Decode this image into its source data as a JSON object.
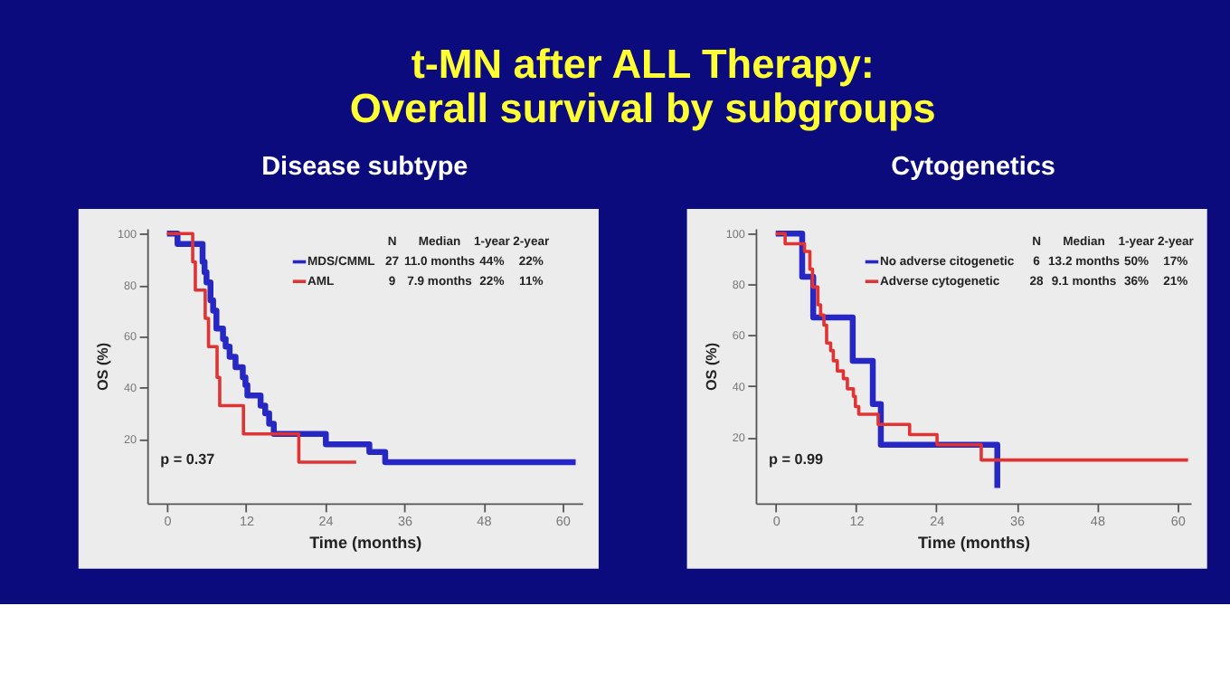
{
  "chart_data": [
    {
      "type": "other",
      "title": "t-MN after ALL Therapy:\nOverall survival by subgroups"
    },
    {
      "type": "step",
      "title": "Disease subtype",
      "xlabel": "Time (months)",
      "ylabel": "OS (%)",
      "xlim": [
        -3,
        63
      ],
      "ylim": [
        -5,
        102
      ],
      "xticks": [
        0,
        12,
        24,
        36,
        48,
        60
      ],
      "yticks": [
        20,
        40,
        60,
        80,
        100
      ],
      "grid": false,
      "legend": "top",
      "series": [
        {
          "name": "MDS/CMML",
          "color": "#2727c4",
          "x": [
            0,
            1.6,
            5.4,
            5.7,
            6.0,
            6.6,
            7.0,
            7.5,
            8.5,
            8.9,
            9.5,
            10.4,
            11.5,
            11.9,
            12.2,
            14.2,
            14.9,
            15.5,
            16.2,
            24.1,
            30.7,
            33.1,
            62
          ],
          "values": [
            100,
            96,
            89,
            85,
            81,
            74,
            70,
            63,
            59,
            56,
            52,
            48,
            44,
            41,
            37,
            33,
            30,
            26,
            22,
            18,
            15,
            11,
            11
          ]
        },
        {
          "name": "AML",
          "color": "#e03434",
          "x": [
            0,
            3.9,
            4.3,
            5.8,
            6.3,
            7.6,
            8.0,
            11.6,
            20.0,
            28.7
          ],
          "values": [
            100,
            89,
            78,
            67,
            56,
            44,
            33,
            22,
            11,
            11
          ]
        }
      ],
      "annotations": [
        "N",
        "Median",
        "1-year",
        "2-year",
        "27",
        "11.0 months",
        "44%",
        "22%",
        "9",
        "7.9 months",
        "22%",
        "11%",
        "p = 0.37"
      ]
    },
    {
      "type": "step",
      "title": "Cytogenetics",
      "xlabel": "Time (months)",
      "ylabel": "OS (%)",
      "xlim": [
        -3,
        62
      ],
      "ylim": [
        -6,
        102
      ],
      "xticks": [
        0,
        12,
        24,
        36,
        48,
        60
      ],
      "yticks": [
        20,
        40,
        60,
        80,
        100
      ],
      "grid": false,
      "legend": "top",
      "series": [
        {
          "name": "No adverse citogenetic",
          "color": "#2727c4",
          "x": [
            0,
            3.95,
            5.6,
            11.5,
            14.5,
            15.7,
            33.1
          ],
          "values": [
            100,
            83,
            67,
            50,
            33,
            17,
            0
          ]
        },
        {
          "name": "Adverse cytogenetic",
          "color": "#e03434",
          "x": [
            0,
            1.4,
            4.3,
            5.1,
            5.5,
            6.3,
            6.7,
            7.2,
            7.6,
            8.2,
            8.6,
            9.2,
            10.1,
            10.7,
            11.6,
            11.9,
            12.4,
            15.3,
            20.0,
            24.1,
            30.7,
            61.6
          ],
          "values": [
            100,
            96,
            93,
            86,
            79,
            72,
            68,
            64,
            57,
            54,
            50,
            46,
            43,
            39,
            36,
            32,
            29,
            25,
            21,
            17,
            11,
            11
          ]
        }
      ],
      "annotations": [
        "N",
        "Median",
        "1-year",
        "2-year",
        "6",
        "13.2 months",
        "50%",
        "17%",
        "28",
        "9.1 months",
        "36%",
        "21%",
        "p = 0.99"
      ]
    }
  ]
}
